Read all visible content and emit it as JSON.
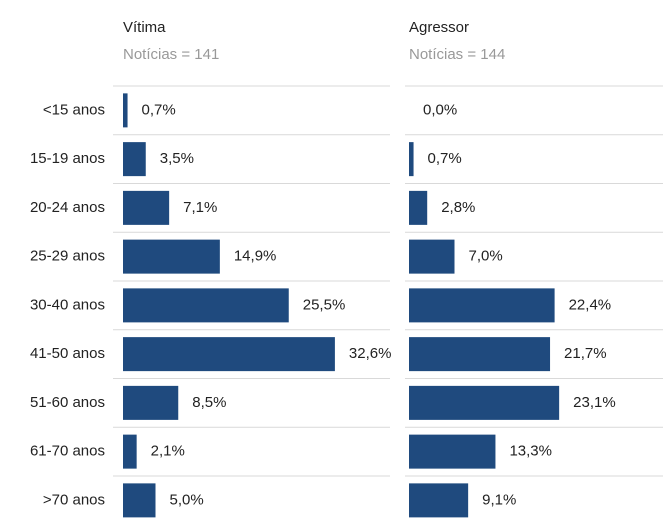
{
  "chart_data": [
    {
      "type": "bar",
      "orientation": "horizontal",
      "title": "Vítima",
      "subtitle": "Notícias = 141",
      "color": "#1f4a7e",
      "categories": [
        "<15 anos",
        "15-19 anos",
        "20-24 anos",
        "25-29 anos",
        "30-40 anos",
        "41-50 anos",
        "51-60 anos",
        "61-70 anos",
        ">70 anos"
      ],
      "values": [
        0.7,
        3.5,
        7.1,
        14.9,
        25.5,
        32.6,
        8.5,
        2.1,
        5.0
      ],
      "value_labels": [
        "0,7%",
        "3,5%",
        "7,1%",
        "14,9%",
        "25,5%",
        "32,6%",
        "8,5%",
        "2,1%",
        "5,0%"
      ]
    },
    {
      "type": "bar",
      "orientation": "horizontal",
      "title": "Agressor",
      "subtitle": "Notícias = 144",
      "color": "#1f4a7e",
      "values": [
        0.0,
        0.7,
        2.8,
        7.0,
        22.4,
        21.7,
        23.1,
        13.3,
        9.1
      ],
      "value_labels": [
        "0,0%",
        "0,7%",
        "2,8%",
        "7,0%",
        "22,4%",
        "21,7%",
        "23,1%",
        "13,3%",
        "9,1%"
      ]
    }
  ]
}
